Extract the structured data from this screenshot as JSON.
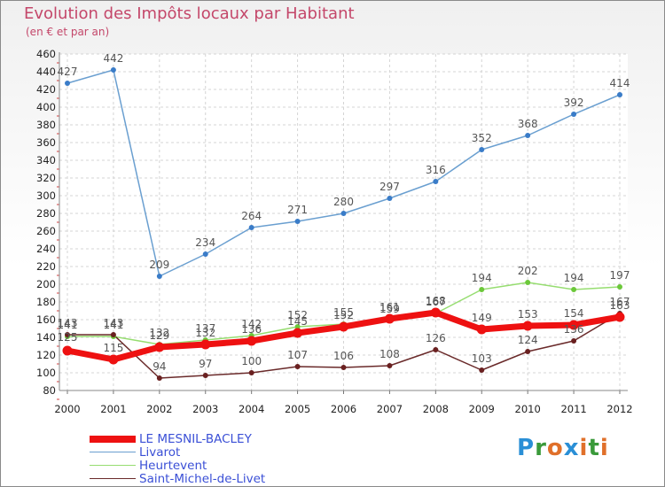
{
  "header": {
    "title": "Evolution des Impôts locaux par Habitant",
    "subtitle": "(en € et par an)"
  },
  "logo": {
    "text": "Proxiti",
    "colors": [
      "#2a8fd6",
      "#3a9a3a",
      "#e0702a",
      "#2a8fd6",
      "#e0702a",
      "#3a9a3a",
      "#e0702a"
    ]
  },
  "chart_data": {
    "type": "line",
    "title": "Evolution des Impôts locaux par Habitant",
    "subtitle": "(en € et par an)",
    "categories": [
      "2000",
      "2001",
      "2002",
      "2003",
      "2004",
      "2005",
      "2006",
      "2007",
      "2008",
      "2009",
      "2010",
      "2011",
      "2012"
    ],
    "ylim": [
      80,
      460
    ],
    "yticks": [
      80,
      100,
      120,
      140,
      160,
      180,
      200,
      220,
      240,
      260,
      280,
      300,
      320,
      340,
      360,
      380,
      400,
      420,
      440,
      460
    ],
    "grid": true,
    "legend_position": "bottom-left",
    "series": [
      {
        "name": "Livarot",
        "color": "#6a9fd0",
        "marker": "#3a7cc8",
        "values": [
          427,
          442,
          209,
          234,
          264,
          271,
          280,
          297,
          316,
          352,
          368,
          392,
          414
        ]
      },
      {
        "name": "Heurtevent",
        "color": "#96dd70",
        "marker": "#6cc83a",
        "values": [
          141,
          141,
          132,
          137,
          142,
          152,
          155,
          159,
          167,
          194,
          202,
          194,
          197
        ]
      },
      {
        "name": "Saint-Michel-de-Livet",
        "color": "#6a2a2a",
        "marker": "#6a2020",
        "values": [
          143,
          143,
          94,
          97,
          100,
          107,
          106,
          108,
          126,
          103,
          124,
          136,
          167
        ]
      },
      {
        "name": "LE MESNIL-BACLEY",
        "color": "#ee1111",
        "marker": "#ee1111",
        "values": [
          125,
          115,
          129,
          132,
          136,
          145,
          152,
          161,
          168,
          149,
          153,
          154,
          163
        ]
      }
    ],
    "data_labels": {
      "Livarot": [
        "427",
        "442",
        "209",
        "234",
        "264",
        "271",
        "280",
        "297",
        "316",
        "352",
        "368",
        "392",
        "414"
      ],
      "Heurtevent": [
        "141",
        "141",
        "132",
        "137",
        "142",
        "152",
        "155",
        "159",
        "167",
        "194",
        "202",
        "194",
        "197"
      ],
      "Saint-Michel-de-Livet": [
        "143",
        "143",
        "94",
        "97",
        "100",
        "107",
        "106",
        "108",
        "126",
        "103",
        "124",
        "136",
        "167"
      ],
      "LE MESNIL-BACLEY": [
        "125",
        "115",
        "129",
        "132",
        "136",
        "145",
        "152",
        "161",
        "168",
        "149",
        "153",
        "154",
        "163"
      ]
    }
  },
  "legend": [
    {
      "name": "LE MESNIL-BACLEY",
      "color": "#ee1111",
      "width": 8
    },
    {
      "name": "Livarot",
      "color": "#6a9fd0",
      "width": 1.5
    },
    {
      "name": "Heurtevent",
      "color": "#96dd70",
      "width": 1.5
    },
    {
      "name": "Saint-Michel-de-Livet",
      "color": "#6a2a2a",
      "width": 1.5
    }
  ]
}
